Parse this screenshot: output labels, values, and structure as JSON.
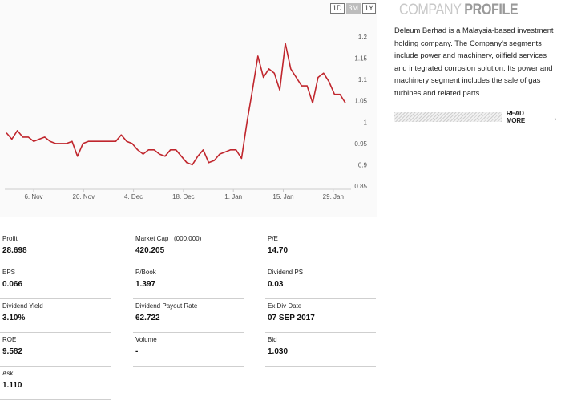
{
  "range_buttons": [
    {
      "label": "1D",
      "active": false
    },
    {
      "label": "3M",
      "active": true
    },
    {
      "label": "1Y",
      "active": false
    }
  ],
  "chart_data": {
    "type": "line",
    "line_color": "#c0262d",
    "ylim": [
      0.85,
      1.2
    ],
    "y_ticks": [
      "1.2",
      "1.15",
      "1.1",
      "1.05",
      "1",
      "0.95",
      "0.9",
      "0.85"
    ],
    "x_ticks": [
      "6. Nov",
      "20. Nov",
      "4. Dec",
      "18. Dec",
      "1. Jan",
      "15. Jan",
      "29. Jan"
    ],
    "series": [
      {
        "values": [
          0.975,
          0.96,
          0.98,
          0.965,
          0.965,
          0.955,
          0.96,
          0.965,
          0.955,
          0.95,
          0.95,
          0.95,
          0.955,
          0.92,
          0.95,
          0.955,
          0.955,
          0.955,
          0.955,
          0.955,
          0.955,
          0.97,
          0.955,
          0.95,
          0.935,
          0.925,
          0.935,
          0.935,
          0.925,
          0.92,
          0.935,
          0.935,
          0.92,
          0.905,
          0.9,
          0.92,
          0.935,
          0.905,
          0.91,
          0.925,
          0.93,
          0.935,
          0.935,
          0.915,
          1.0,
          1.075,
          1.155,
          1.105,
          1.125,
          1.115,
          1.075,
          1.185,
          1.125,
          1.105,
          1.085,
          1.085,
          1.045,
          1.105,
          1.115,
          1.095,
          1.065,
          1.065,
          1.045
        ]
      }
    ]
  },
  "profile": {
    "title_light": "COMPANY",
    "title_bold": "PROFILE",
    "text": "Deleum Berhad is a Malaysia-based investment holding company. The Company's segments include power and machinery, oilfield services and integrated corrosion solution. Its power and machinery segment includes the sale of gas turbines and related parts...",
    "read_more": "READ MORE",
    "arrow_icon": "arrow-right-icon"
  },
  "stats": [
    {
      "label": "Profit",
      "value": "28.698"
    },
    {
      "label": "Market Cap   (000,000)",
      "value": "420.205"
    },
    {
      "label": "P/E",
      "value": "14.70"
    },
    {
      "label": "EPS",
      "value": "0.066"
    },
    {
      "label": "P/Book",
      "value": "1.397"
    },
    {
      "label": "Dividend PS",
      "value": "0.03"
    },
    {
      "label": "Dividend Yield",
      "value": "3.10%"
    },
    {
      "label": "Dividend Payout Rate",
      "value": "62.722"
    },
    {
      "label": "Ex Div Date",
      "value": "07 SEP 2017"
    },
    {
      "label": "ROE",
      "value": "9.582"
    },
    {
      "label": "Volume",
      "value": "-"
    },
    {
      "label": "Bid",
      "value": "1.030"
    },
    {
      "label": "Ask",
      "value": "1.110"
    }
  ]
}
